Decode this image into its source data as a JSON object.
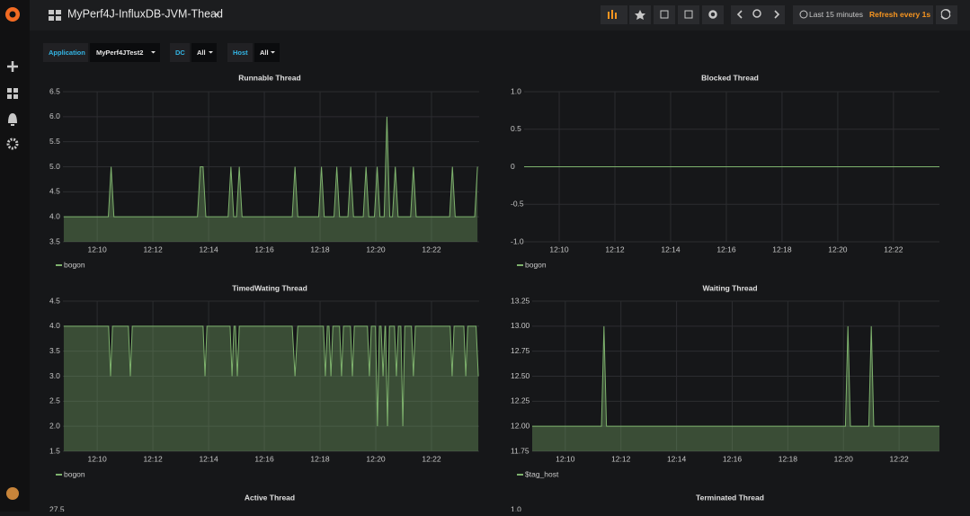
{
  "header": {
    "title": "MyPerf4J-InfluxDB-JVM-Thead",
    "time_range": "Last 15 minutes",
    "refresh": "Refresh every 1s"
  },
  "variables": [
    {
      "label": "Application",
      "value": "MyPerf4JTest2"
    },
    {
      "label": "DC",
      "value": "All"
    },
    {
      "label": "Host",
      "value": "All"
    }
  ],
  "chart_data": [
    {
      "type": "line",
      "title": "Runnable Thread",
      "grid": true,
      "xlim": [
        728.77,
        743.71
      ],
      "ylim": [
        3.5,
        6.5
      ],
      "xticks": [
        {
          "value": 730,
          "label": "12:10"
        },
        {
          "value": 732,
          "label": "12:12"
        },
        {
          "value": 734,
          "label": "12:14"
        },
        {
          "value": 736,
          "label": "12:16"
        },
        {
          "value": 738,
          "label": "12:18"
        },
        {
          "value": 740,
          "label": "12:20"
        },
        {
          "value": 742,
          "label": "12:22"
        }
      ],
      "yticks": [
        3.5,
        {
          "value": 4,
          "label": "4.0"
        },
        4.5,
        {
          "value": 5,
          "label": "5.0"
        },
        5.5,
        {
          "value": 6,
          "label": "6.0"
        },
        6.5
      ],
      "x": [
        728.8,
        730.4,
        730.5,
        730.6,
        733.6,
        733.7,
        733.8,
        733.9,
        734.7,
        734.8,
        734.9,
        735.0,
        735.1,
        735.2,
        737.0,
        737.1,
        737.2,
        737.95,
        738.05,
        738.15,
        738.5,
        738.6,
        738.7,
        739.0,
        739.1,
        739.2,
        739.55,
        739.65,
        739.75,
        739.95,
        740.05,
        740.15,
        740.3,
        740.4,
        740.5,
        740.6,
        740.7,
        740.8,
        741.25,
        741.35,
        741.45,
        742.65,
        742.75,
        742.85,
        743.55,
        743.65
      ],
      "series": [
        {
          "name": "bogon",
          "color": "#7eb26d",
          "values": [
            4,
            4,
            5,
            4,
            4,
            5,
            5,
            4,
            4,
            5,
            4,
            4,
            5,
            4,
            4,
            5,
            4,
            4,
            5,
            4,
            4,
            5,
            4,
            4,
            5,
            4,
            4,
            5,
            4,
            4,
            5,
            4,
            4,
            6,
            4,
            4,
            5,
            4,
            4,
            5,
            4,
            4,
            5,
            4,
            4,
            5
          ]
        }
      ]
    },
    {
      "type": "line",
      "title": "Blocked Thread",
      "grid": true,
      "xlim": [
        728.74,
        743.65
      ],
      "ylim": [
        -1,
        1
      ],
      "xticks": [
        {
          "value": 730,
          "label": "12:10"
        },
        {
          "value": 732,
          "label": "12:12"
        },
        {
          "value": 734,
          "label": "12:14"
        },
        {
          "value": 736,
          "label": "12:16"
        },
        {
          "value": 738,
          "label": "12:18"
        },
        {
          "value": 740,
          "label": "12:20"
        },
        {
          "value": 742,
          "label": "12:22"
        }
      ],
      "yticks": [
        {
          "value": -1,
          "label": "-1.0"
        },
        -0.5,
        0,
        0.5,
        {
          "value": 1,
          "label": "1.0"
        }
      ],
      "x": [
        728.74,
        743.65
      ],
      "series": [
        {
          "name": "bogon",
          "color": "#7eb26d",
          "values": [
            0,
            0
          ]
        }
      ]
    },
    {
      "type": "line",
      "title": "TimedWating Thread",
      "grid": true,
      "xlim": [
        728.77,
        743.71
      ],
      "ylim": [
        1.5,
        4.5
      ],
      "xticks": [
        {
          "value": 730,
          "label": "12:10"
        },
        {
          "value": 732,
          "label": "12:12"
        },
        {
          "value": 734,
          "label": "12:14"
        },
        {
          "value": 736,
          "label": "12:16"
        },
        {
          "value": 738,
          "label": "12:18"
        },
        {
          "value": 740,
          "label": "12:20"
        },
        {
          "value": 742,
          "label": "12:22"
        }
      ],
      "yticks": [
        1.5,
        {
          "value": 2,
          "label": "2.0"
        },
        2.5,
        {
          "value": 3,
          "label": "3.0"
        },
        3.5,
        {
          "value": 4,
          "label": "4.0"
        },
        4.5
      ],
      "x": [
        728.8,
        730.41,
        730.48,
        730.55,
        731.12,
        731.19,
        731.26,
        733.8,
        733.87,
        733.94,
        734.77,
        734.84,
        734.91,
        734.96,
        735.03,
        735.1,
        737.0,
        737.1,
        737.2,
        738.12,
        738.19,
        738.26,
        738.32,
        738.39,
        738.46,
        738.7,
        738.77,
        738.84,
        739.09,
        739.16,
        739.23,
        739.7,
        739.77,
        739.84,
        739.99,
        740.06,
        740.13,
        740.19,
        740.26,
        740.33,
        740.35,
        740.42,
        740.49,
        740.67,
        740.74,
        740.81,
        740.9,
        740.97,
        741.04,
        741.28,
        741.35,
        741.42,
        742.67,
        742.74,
        742.81,
        743.16,
        743.23,
        743.3,
        743.6,
        743.68
      ],
      "series": [
        {
          "name": "bogon",
          "color": "#7eb26d",
          "values": [
            4,
            4,
            3,
            4,
            4,
            3,
            4,
            4,
            3,
            4,
            4,
            3,
            4,
            4,
            3,
            4,
            4,
            3,
            4,
            4,
            3,
            4,
            4,
            3,
            4,
            4,
            3,
            4,
            4,
            3,
            4,
            4,
            3,
            4,
            4,
            2,
            4,
            4,
            3,
            4,
            4,
            2,
            4,
            4,
            3,
            4,
            4,
            2,
            4,
            4,
            3,
            4,
            4,
            3,
            4,
            4,
            3,
            4,
            4,
            3
          ]
        }
      ]
    },
    {
      "type": "line",
      "title": "Waiting Thread",
      "grid": true,
      "xlim": [
        728.81,
        743.45
      ],
      "ylim": [
        11.75,
        13.25
      ],
      "xticks": [
        {
          "value": 730,
          "label": "12:10"
        },
        {
          "value": 732,
          "label": "12:12"
        },
        {
          "value": 734,
          "label": "12:14"
        },
        {
          "value": 736,
          "label": "12:16"
        },
        {
          "value": 738,
          "label": "12:18"
        },
        {
          "value": 740,
          "label": "12:20"
        },
        {
          "value": 742,
          "label": "12:22"
        }
      ],
      "yticks": [
        11.75,
        {
          "value": 12,
          "label": "12.00"
        },
        12.25,
        {
          "value": 12.5,
          "label": "12.50"
        },
        12.75,
        {
          "value": 13,
          "label": "13.00"
        },
        13.25
      ],
      "x": [
        728.81,
        731.3,
        731.39,
        731.48,
        740.07,
        740.16,
        740.25,
        740.91,
        741.0,
        741.09,
        743.45
      ],
      "series": [
        {
          "name": "$tag_host",
          "color": "#7eb26d",
          "values": [
            12,
            12,
            13,
            12,
            12,
            13,
            12,
            12,
            13,
            12,
            12
          ]
        }
      ]
    },
    {
      "type": "line",
      "title": "Active Thread",
      "yticks": [
        27.5
      ]
    },
    {
      "type": "line",
      "title": "Terminated Thread",
      "yticks": [
        {
          "value": 1,
          "label": "1.0"
        }
      ]
    }
  ]
}
